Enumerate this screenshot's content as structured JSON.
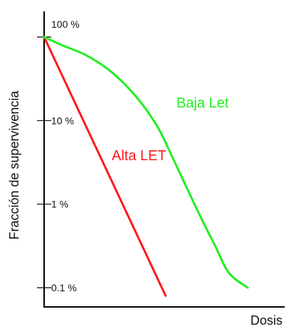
{
  "chart_data": {
    "type": "line",
    "title": "",
    "xlabel": "Dosis",
    "ylabel": "Fracción de supervivencia",
    "y_scale": "log",
    "y_ticks": [
      {
        "value": 100,
        "label": "100 %"
      },
      {
        "value": 10,
        "label": "10 %"
      },
      {
        "value": 1,
        "label": "1 %"
      },
      {
        "value": 0.1,
        "label": "0.1 %"
      }
    ],
    "xlim": [
      0,
      100
    ],
    "ylim": [
      0.075,
      100
    ],
    "x_ticks": [],
    "grid": false,
    "legend": "none",
    "axis_color": "#000000",
    "series": [
      {
        "name": "Alta LET",
        "color": "#ff1a1a",
        "label_position": "middle",
        "x": [
          0,
          57.9
        ],
        "y": [
          100,
          0.08
        ]
      },
      {
        "name": "Baja Let",
        "color": "#22ee22",
        "label_position": "upper-right",
        "x": [
          0,
          8.5,
          20.3,
          32.2,
          44.1,
          54.2,
          61.0,
          67.8,
          74.6,
          81.4,
          88.1,
          97.0
        ],
        "y": [
          100,
          80,
          60,
          38,
          19,
          8.3,
          3.7,
          1.6,
          0.7,
          0.32,
          0.15,
          0.1
        ]
      }
    ]
  }
}
